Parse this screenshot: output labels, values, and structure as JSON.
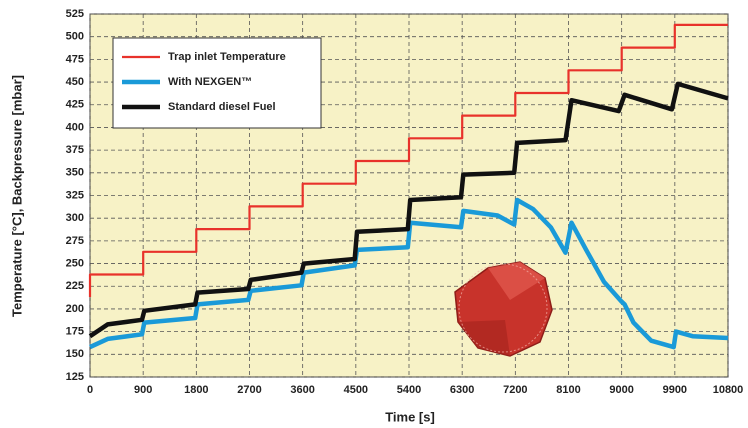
{
  "chart_data": {
    "type": "line",
    "xlabel": "Time [s]",
    "ylabel": "Temperature [°C],  Backpressure [mbar]",
    "xlim": [
      0,
      10800
    ],
    "ylim": [
      125,
      525
    ],
    "xticks": [
      0,
      900,
      1800,
      2700,
      3600,
      4500,
      5400,
      6300,
      7200,
      8100,
      9000,
      9900,
      10800
    ],
    "yticks": [
      125,
      150,
      175,
      200,
      225,
      250,
      275,
      300,
      325,
      350,
      375,
      400,
      425,
      450,
      475,
      500,
      525
    ],
    "grid": true,
    "series": [
      {
        "name": "Trap inlet Temperature",
        "color": "#e8322b",
        "width": 2.2,
        "x": [
          0,
          0,
          900,
          900,
          1800,
          1800,
          2700,
          2700,
          3600,
          3600,
          4500,
          4500,
          5400,
          5400,
          6300,
          6300,
          7200,
          7200,
          8100,
          8100,
          9000,
          9000,
          9900,
          9900,
          10800
        ],
        "values": [
          213,
          238,
          238,
          263,
          263,
          288,
          288,
          313,
          313,
          338,
          338,
          363,
          363,
          388,
          388,
          413,
          413,
          438,
          438,
          463,
          463,
          488,
          488,
          513,
          513
        ]
      },
      {
        "name": "With NEXGEN™",
        "color": "#1a9ad8",
        "width": 4.5,
        "x": [
          0,
          300,
          880,
          920,
          1780,
          1820,
          2680,
          2720,
          3580,
          3620,
          4480,
          4520,
          5380,
          5420,
          6280,
          6320,
          6900,
          7180,
          7230,
          7500,
          7800,
          8050,
          8150,
          8400,
          8700,
          9000,
          9050,
          9200,
          9500,
          9880,
          9920,
          10200,
          10800
        ],
        "values": [
          158,
          167,
          172,
          185,
          190,
          205,
          210,
          220,
          226,
          240,
          248,
          265,
          268,
          295,
          290,
          308,
          303,
          293,
          320,
          310,
          290,
          262,
          295,
          265,
          230,
          208,
          205,
          185,
          165,
          158,
          175,
          170,
          168
        ]
      },
      {
        "name": "Standard diesel Fuel",
        "color": "#111111",
        "width": 4.5,
        "x": [
          0,
          300,
          880,
          920,
          1780,
          1820,
          2680,
          2720,
          3580,
          3620,
          4480,
          4520,
          5380,
          5420,
          6280,
          6320,
          7180,
          7230,
          8050,
          8150,
          8950,
          9050,
          9850,
          9950,
          10800
        ],
        "values": [
          170,
          183,
          188,
          198,
          205,
          218,
          222,
          232,
          240,
          250,
          255,
          285,
          288,
          320,
          323,
          348,
          350,
          383,
          386,
          430,
          418,
          436,
          420,
          448,
          432
        ]
      }
    ]
  }
}
